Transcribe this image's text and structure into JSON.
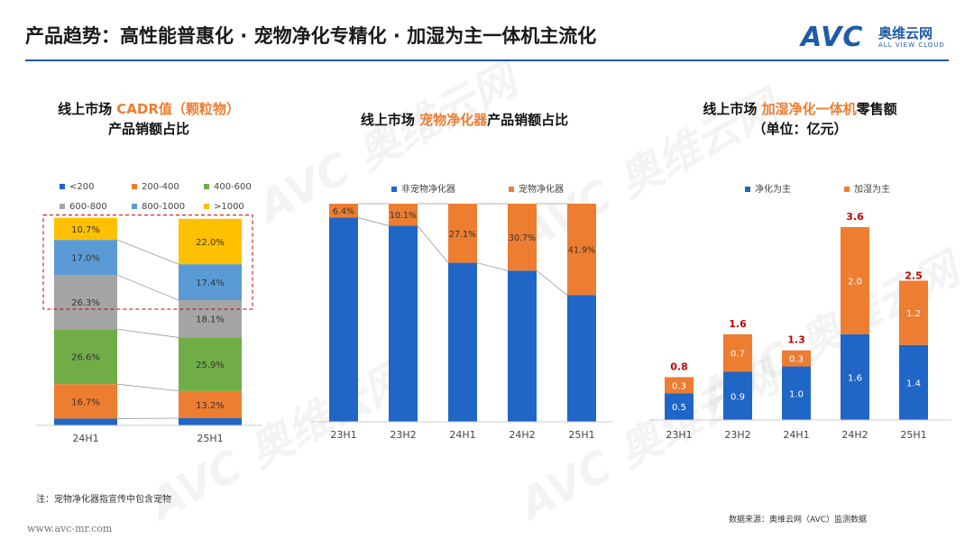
{
  "header": {
    "title": "产品趋势：高性能普惠化 · 宠物净化专精化 · 加湿为主一体机主流化",
    "logo_mark": "AVC",
    "logo_cn": "奥维云网",
    "logo_en": "ALL VIEW CLOUD"
  },
  "watermark": {
    "text": "AVC 奥维云网",
    "sub": "ALL VIEW CLOUD"
  },
  "note": "注：宠物净化器指宣传中包含宠物",
  "source": "数据来源：奥维云网（AVC）监测数据",
  "website": "www.avc-mr.com",
  "colors": {
    "accent": "#1f5ba8",
    "blue": "#1f66c6",
    "orange": "#ed7d31",
    "green": "#70ad47",
    "gray": "#a5a5a5",
    "light_blue": "#5b9bd5",
    "yellow": "#ffc000",
    "red": "#c00000"
  },
  "chart_data": [
    {
      "type": "bar",
      "stacked": "percent",
      "title_pre": "线上市场 ",
      "title_hl": "CADR值（颗粒物）",
      "title_line2": "产品销额占比",
      "categories": [
        "24H1",
        "25H1"
      ],
      "series": [
        {
          "name": "<200",
          "values": [
            3.3,
            3.5
          ],
          "color": "#1f66c6",
          "label": false
        },
        {
          "name": "200-400",
          "values": [
            16.7,
            13.2
          ],
          "color": "#ed7d31",
          "label": true
        },
        {
          "name": "400-600",
          "values": [
            26.6,
            25.9
          ],
          "color": "#70ad47",
          "label": true
        },
        {
          "name": "600-800",
          "values": [
            26.3,
            18.1
          ],
          "color": "#a5a5a5",
          "label": true
        },
        {
          "name": "800-1000",
          "values": [
            17.0,
            17.4
          ],
          "color": "#5b9bd5",
          "label": true
        },
        {
          "name": ">1000",
          "values": [
            10.7,
            22.0
          ],
          "color": "#ffc000",
          "label": true
        }
      ],
      "highlight_box": "800-1000 and >1000 segments",
      "grid": false
    },
    {
      "type": "bar",
      "stacked": "percent",
      "title_pre": "线上市场 ",
      "title_hl": "宠物净化器",
      "title_post": "产品销额占比",
      "categories": [
        "23H1",
        "23H2",
        "24H1",
        "24H2",
        "25H1"
      ],
      "series": [
        {
          "name": "非宠物净化器",
          "values": [
            93.6,
            89.9,
            72.9,
            69.3,
            58.1
          ],
          "color": "#1f66c6",
          "label": false
        },
        {
          "name": "宠物净化器",
          "values": [
            6.4,
            10.1,
            27.1,
            30.7,
            41.9
          ],
          "color": "#ed7d31",
          "label": true
        }
      ],
      "grid": false
    },
    {
      "type": "bar",
      "stacked": "value",
      "title_pre": "线上市场 ",
      "title_hl": "加湿净化一体机",
      "title_post": "零售额",
      "title_line2": "（单位：亿元）",
      "categories": [
        "23H1",
        "23H2",
        "24H1",
        "24H2",
        "25H1"
      ],
      "series": [
        {
          "name": "净化为主",
          "values": [
            0.5,
            0.9,
            1.0,
            1.6,
            1.4
          ],
          "color": "#1f66c6"
        },
        {
          "name": "加湿为主",
          "values": [
            0.3,
            0.7,
            0.3,
            2.0,
            1.2
          ],
          "color": "#ed7d31"
        }
      ],
      "totals": [
        0.8,
        1.6,
        1.3,
        3.6,
        2.5
      ],
      "ylim": [
        0,
        4
      ],
      "grid": false
    }
  ]
}
